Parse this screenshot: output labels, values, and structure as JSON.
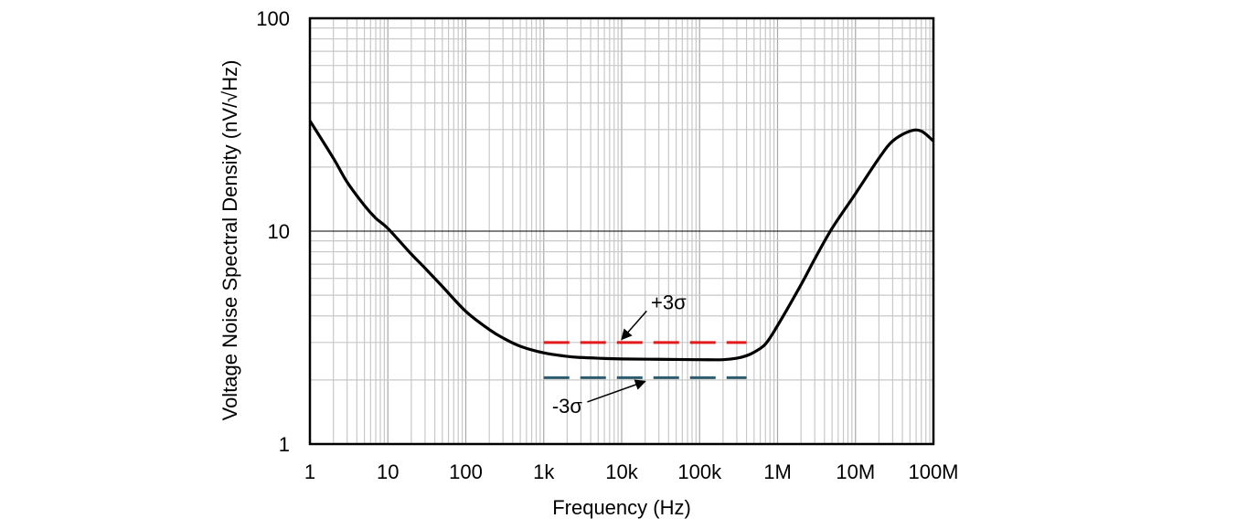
{
  "chart_data": {
    "type": "line",
    "title": "",
    "xlabel": "Frequency (Hz)",
    "ylabel": "Voltage Noise Spectral Density (nV/√Hz)",
    "x_scale": "log",
    "y_scale": "log",
    "xlim": [
      1,
      100000000
    ],
    "ylim": [
      1,
      100
    ],
    "grid": true,
    "x_ticks": [
      {
        "value": 1,
        "label": "1"
      },
      {
        "value": 10,
        "label": "10"
      },
      {
        "value": 100,
        "label": "100"
      },
      {
        "value": 1000,
        "label": "1k"
      },
      {
        "value": 10000,
        "label": "10k"
      },
      {
        "value": 100000,
        "label": "100k"
      },
      {
        "value": 1000000,
        "label": "1M"
      },
      {
        "value": 10000000,
        "label": "10M"
      },
      {
        "value": 100000000,
        "label": "100M"
      }
    ],
    "y_ticks": [
      {
        "value": 1,
        "label": "1"
      },
      {
        "value": 10,
        "label": "10"
      },
      {
        "value": 100,
        "label": "100"
      }
    ],
    "series": [
      {
        "color": "#000000",
        "style": "solid",
        "points": [
          [
            1,
            33
          ],
          [
            2,
            22
          ],
          [
            3,
            17
          ],
          [
            5,
            13.2
          ],
          [
            7,
            11.5
          ],
          [
            10,
            10.3
          ],
          [
            20,
            7.8
          ],
          [
            30,
            6.7
          ],
          [
            50,
            5.5
          ],
          [
            100,
            4.2
          ],
          [
            200,
            3.45
          ],
          [
            300,
            3.15
          ],
          [
            500,
            2.88
          ],
          [
            1000,
            2.68
          ],
          [
            2000,
            2.58
          ],
          [
            3000,
            2.55
          ],
          [
            5000,
            2.53
          ],
          [
            10000,
            2.51
          ],
          [
            30000,
            2.5
          ],
          [
            100000,
            2.49
          ],
          [
            200000,
            2.49
          ],
          [
            300000,
            2.53
          ],
          [
            400000,
            2.6
          ],
          [
            500000,
            2.7
          ],
          [
            700000,
            2.95
          ],
          [
            1000000,
            3.6
          ],
          [
            2000000,
            5.6
          ],
          [
            3000000,
            7.4
          ],
          [
            5000000,
            10.3
          ],
          [
            10000000,
            15
          ],
          [
            20000000,
            22
          ],
          [
            30000000,
            26.5
          ],
          [
            50000000,
            29.5
          ],
          [
            70000000,
            29.5
          ],
          [
            100000000,
            26.5
          ]
        ]
      },
      {
        "color": "#e31a1c",
        "style": "dashed",
        "points": [
          [
            1000,
            3.0
          ],
          [
            400000,
            3.0
          ]
        ]
      },
      {
        "color": "#2e5a6e",
        "style": "dashed",
        "points": [
          [
            1000,
            2.05
          ],
          [
            400000,
            2.05
          ]
        ]
      }
    ],
    "annotations": [
      {
        "text": "+3σ",
        "x": 40000,
        "y": 4.3,
        "arrow_to": [
          10000,
          3.1
        ]
      },
      {
        "text": "-3σ",
        "x": 2000,
        "y": 1.4,
        "arrow_to": [
          20000,
          1.97
        ]
      }
    ]
  }
}
